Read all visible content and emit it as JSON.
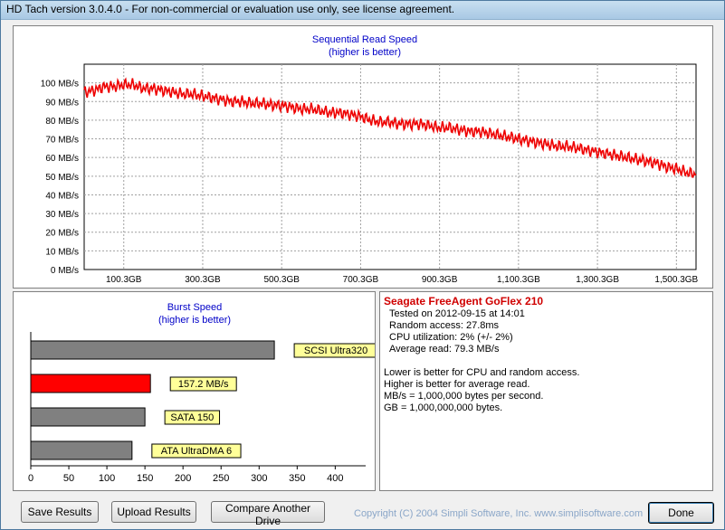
{
  "window": {
    "title": "HD Tach version 3.0.4.0  - For non-commercial or evaluation use only, see license agreement."
  },
  "read_chart": {
    "title": "Sequential Read Speed",
    "subtitle": "(higher is better)",
    "line_color": "#ee0000"
  },
  "burst_chart": {
    "title": "Burst Speed",
    "subtitle": "(higher is better)"
  },
  "chart_data": [
    {
      "type": "line",
      "title": "Sequential Read Speed",
      "subtitle": "(higher is better)",
      "xlabel": "",
      "ylabel": "",
      "y_unit": "MB/s",
      "ylim": [
        0,
        110
      ],
      "xlim": [
        0,
        1550
      ],
      "grid": true,
      "y_ticks": [
        0,
        10,
        20,
        30,
        40,
        50,
        60,
        70,
        80,
        90,
        100
      ],
      "y_tick_labels": [
        "0 MB/s",
        "10 MB/s",
        "20 MB/s",
        "30 MB/s",
        "40 MB/s",
        "50 MB/s",
        "60 MB/s",
        "70 MB/s",
        "80 MB/s",
        "90 MB/s",
        "100 MB/s"
      ],
      "x_ticks": [
        100.3,
        300.3,
        500.3,
        700.3,
        900.3,
        1100.3,
        1300.3,
        1500.3
      ],
      "x_tick_labels": [
        "100.3GB",
        "300.3GB",
        "500.3GB",
        "700.3GB",
        "900.3GB",
        "1,100.3GB",
        "1,300.3GB",
        "1,500.3GB"
      ],
      "series": [
        {
          "color": "#ee0000",
          "x": [
            0,
            25,
            50,
            75,
            100,
            125,
            150,
            175,
            200,
            225,
            250,
            275,
            300,
            325,
            350,
            375,
            400,
            425,
            450,
            475,
            500,
            525,
            550,
            575,
            600,
            625,
            650,
            675,
            700,
            725,
            750,
            775,
            800,
            825,
            850,
            875,
            900,
            925,
            950,
            975,
            1000,
            1025,
            1050,
            1075,
            1100,
            1125,
            1150,
            1175,
            1200,
            1225,
            1250,
            1275,
            1300,
            1325,
            1350,
            1375,
            1400,
            1425,
            1450,
            1475,
            1500,
            1525,
            1550
          ],
          "y": [
            95,
            96,
            98,
            98,
            99,
            99,
            97,
            97,
            96,
            95,
            94,
            94,
            93,
            92,
            91,
            90,
            90,
            89,
            89,
            88,
            88,
            87,
            86,
            86,
            85,
            84,
            84,
            83,
            82,
            80,
            79,
            79,
            78,
            78,
            78,
            77,
            76,
            76,
            75,
            74,
            74,
            73,
            72,
            71,
            70,
            69,
            68,
            67,
            66,
            66,
            65,
            64,
            63,
            62,
            61,
            60,
            59,
            58,
            57,
            55,
            54,
            52,
            51
          ]
        }
      ]
    },
    {
      "type": "bar",
      "orientation": "horizontal",
      "title": "Burst Speed",
      "subtitle": "(higher is better)",
      "xlim": [
        0,
        440
      ],
      "x_ticks": [
        0,
        50,
        100,
        150,
        200,
        250,
        300,
        350,
        400
      ],
      "x_tick_labels": [
        "0",
        "50",
        "100",
        "150",
        "200",
        "250",
        "300",
        "350",
        "400"
      ],
      "categories": [
        "SCSI Ultra320",
        "157.2 MB/s",
        "SATA 150",
        "ATA UltraDMA 6"
      ],
      "values": [
        320,
        157.2,
        150,
        133
      ],
      "colors": [
        "#808080",
        "#ff0000",
        "#808080",
        "#808080"
      ]
    }
  ],
  "info": {
    "drive_name": "Seagate FreeAgent GoFlex 210",
    "tested_on": "Tested on 2012-09-15 at 14:01",
    "random_access": "Random access: 27.8ms",
    "cpu_utilization": "CPU utilization: 2% (+/- 2%)",
    "average_read": "Average read: 79.3 MB/s",
    "note_cpu": "Lower is better for CPU and random access.",
    "note_read": "Higher is better for average read.",
    "note_mbs": "MB/s = 1,000,000 bytes per second.",
    "note_gb": "GB = 1,000,000,000 bytes."
  },
  "buttons": {
    "save": "Save Results",
    "upload": "Upload Results",
    "compare": "Compare Another Drive",
    "done": "Done"
  },
  "footer": {
    "copyright": "Copyright (C) 2004 Simpli Software, Inc. www.simplisoftware.com"
  }
}
